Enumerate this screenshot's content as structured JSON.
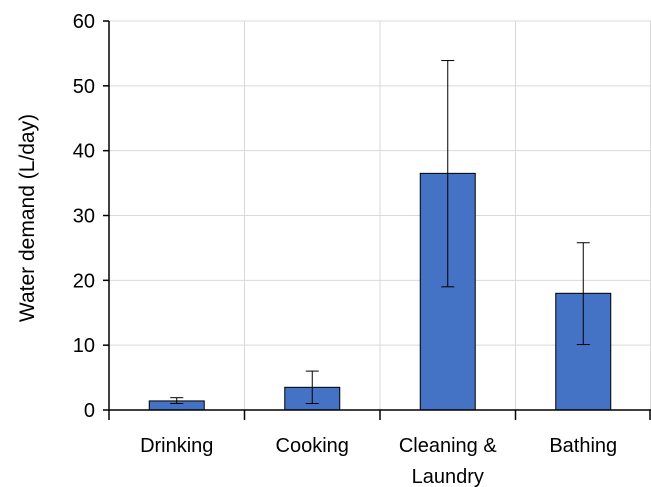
{
  "chart_data": {
    "type": "bar",
    "title": "",
    "xlabel": "",
    "ylabel": "Water demand (L/day)",
    "categories": [
      [
        "Drinking"
      ],
      [
        "Cooking"
      ],
      [
        "Cleaning &",
        "Laundry"
      ],
      [
        "Bathing"
      ]
    ],
    "series": [
      {
        "values": [
          1.4,
          3.5,
          36.5,
          18.0
        ],
        "error_low": [
          1.0,
          1.0,
          19.0,
          10.1
        ],
        "error_high": [
          1.9,
          6.0,
          53.9,
          25.8
        ],
        "color": "#4472c4"
      }
    ],
    "ylim": [
      0,
      60
    ],
    "yticks": [
      0,
      10,
      20,
      30,
      40,
      50,
      60
    ],
    "grid": true
  }
}
